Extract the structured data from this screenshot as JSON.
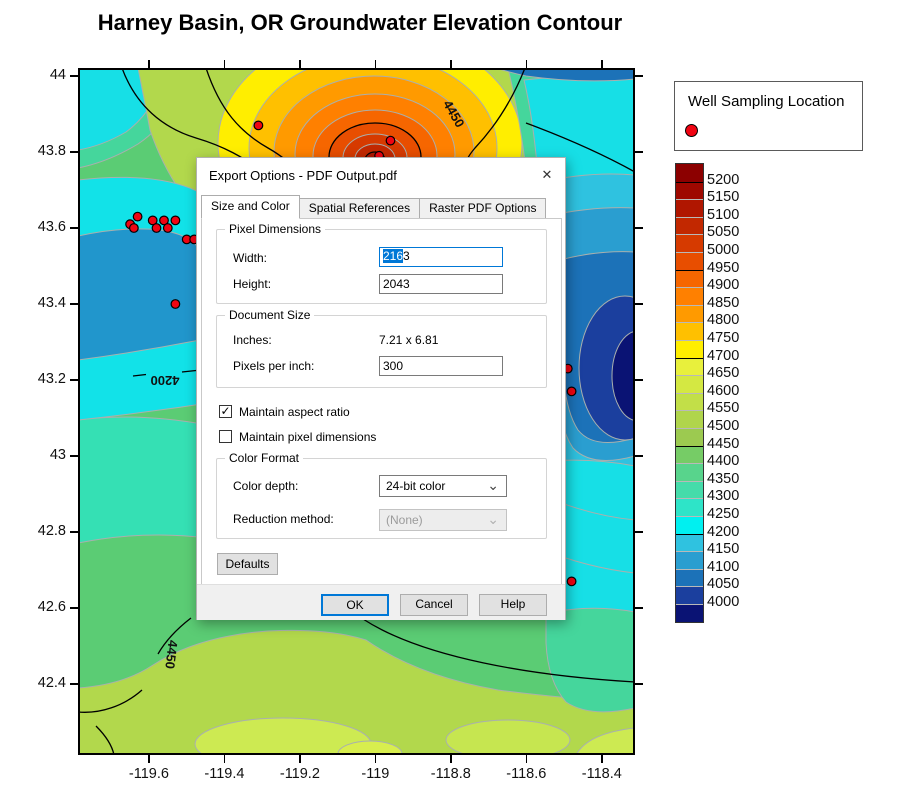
{
  "figure": {
    "title": "Harney Basin, OR Groundwater Elevation Contour"
  },
  "chart_data": {
    "type": "heatmap",
    "title": "Harney Basin, OR Groundwater Elevation Contour",
    "x_axis": {
      "ticks": [
        "-119.6",
        "-119.4",
        "-119.2",
        "-119",
        "-118.8",
        "-118.6",
        "-118.4"
      ],
      "range": [
        -119.788,
        -118.312
      ]
    },
    "y_axis": {
      "ticks": [
        "44",
        "43.8",
        "43.6",
        "43.4",
        "43.2",
        "43",
        "42.8",
        "42.6",
        "42.4"
      ],
      "range": [
        42.213,
        44.021
      ]
    },
    "contour_labels": [
      "4450",
      "4200",
      "4450"
    ],
    "well_points": [
      [
        -119.63,
        43.63
      ],
      [
        -119.65,
        43.61
      ],
      [
        -119.64,
        43.6
      ],
      [
        -119.59,
        43.62
      ],
      [
        -119.58,
        43.6
      ],
      [
        -119.56,
        43.62
      ],
      [
        -119.55,
        43.6
      ],
      [
        -119.53,
        43.62
      ],
      [
        -119.5,
        43.57
      ],
      [
        -119.48,
        43.57
      ],
      [
        -119.53,
        43.4
      ],
      [
        -119.31,
        43.87
      ],
      [
        -118.96,
        43.83
      ],
      [
        -118.99,
        43.79
      ],
      [
        -118.49,
        43.23
      ],
      [
        -118.48,
        43.17
      ],
      [
        -118.48,
        42.67
      ]
    ],
    "well_marker_color": "#f00412",
    "color_scale": {
      "levels": [
        "5200",
        "5150",
        "5100",
        "5050",
        "5000",
        "4950",
        "4900",
        "4850",
        "4800",
        "4750",
        "4700",
        "4650",
        "4600",
        "4550",
        "4500",
        "4450",
        "4400",
        "4350",
        "4300",
        "4250",
        "4200",
        "4150",
        "4100",
        "4050",
        "4000"
      ],
      "colors": [
        "#8c0000",
        "#9e0800",
        "#b01600",
        "#c22800",
        "#d63a00",
        "#e84e00",
        "#f66600",
        "#ff8000",
        "#ff9a00",
        "#ffc000",
        "#ffee00",
        "#e8f03c",
        "#d4e842",
        "#c2df48",
        "#b0d54c",
        "#9cca50",
        "#76cc66",
        "#58d48c",
        "#45dcaa",
        "#2ee4c8",
        "#00f0f0",
        "#2fc2e0",
        "#2a9ed0",
        "#1c72b8",
        "#1b3f9e",
        "#0a1374"
      ],
      "major_contour_interval": 250
    },
    "legend_position": "right"
  },
  "map_legend": {
    "title": "Well Sampling Location",
    "marker_color": "#f00412"
  },
  "dialog": {
    "title": "Export Options - PDF Output.pdf",
    "tabs": [
      "Size and Color",
      "Spatial References",
      "Raster PDF Options"
    ],
    "active_tab": 0,
    "pixel_dimensions": {
      "label": "Pixel Dimensions",
      "width_label": "Width:",
      "width_value_selected": "216",
      "width_value_rest": "3",
      "height_label": "Height:",
      "height_value": "2043"
    },
    "document_size": {
      "label": "Document Size",
      "inches_label": "Inches:",
      "inches_value": "7.21 x 6.81",
      "ppi_label": "Pixels per inch:",
      "ppi_value": "300"
    },
    "checkboxes": [
      {
        "label": "Maintain aspect ratio",
        "checked": true
      },
      {
        "label": "Maintain pixel dimensions",
        "checked": false
      }
    ],
    "color_format": {
      "label": "Color Format",
      "depth_label": "Color depth:",
      "depth_value": "24-bit color",
      "reduction_label": "Reduction method:",
      "reduction_value": "(None)"
    },
    "buttons": {
      "defaults": "Defaults",
      "ok": "OK",
      "cancel": "Cancel",
      "help": "Help"
    },
    "icons": {
      "close": "✕",
      "check": "✓",
      "chevron": "⌄"
    }
  }
}
